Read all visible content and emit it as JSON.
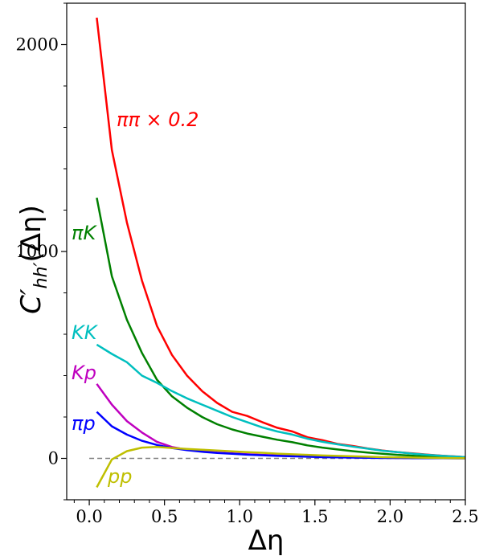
{
  "chart_data": {
    "type": "line",
    "xlabel": "Δη",
    "ylabel": "C′_hh′(Δη)",
    "xlim": [
      -0.15,
      2.5
    ],
    "ylim": [
      -200,
      2200
    ],
    "xticks": [
      "0.0",
      "0.5",
      "1.0",
      "1.5",
      "2.0",
      "2.5"
    ],
    "yticks": [
      "0",
      "1000",
      "2000"
    ],
    "x_tick_values": [
      0.0,
      0.5,
      1.0,
      1.5,
      2.0,
      2.5
    ],
    "y_tick_values": [
      0,
      1000,
      2000
    ],
    "x_minor_step": 0.1,
    "y_minor_step": 200,
    "grid": false,
    "zero_reference_line": true,
    "series": [
      {
        "name": "ππ × 0.2",
        "color": "#ff0000",
        "x": [
          0.05,
          0.15,
          0.25,
          0.35,
          0.45,
          0.55,
          0.65,
          0.75,
          0.85,
          0.95,
          1.05,
          1.15,
          1.25,
          1.35,
          1.45,
          1.55,
          1.65,
          1.75,
          1.85,
          1.95,
          2.05,
          2.15,
          2.25,
          2.35,
          2.45,
          2.5
        ],
        "values": [
          2130,
          1490,
          1140,
          860,
          640,
          500,
          400,
          325,
          268,
          225,
          205,
          175,
          148,
          130,
          102,
          88,
          70,
          60,
          48,
          38,
          30,
          24,
          18,
          13,
          9,
          6
        ]
      },
      {
        "name": "πK",
        "color": "#008000",
        "x": [
          0.05,
          0.15,
          0.25,
          0.35,
          0.45,
          0.55,
          0.65,
          0.75,
          0.85,
          0.95,
          1.05,
          1.15,
          1.25,
          1.35,
          1.45,
          1.55,
          1.65,
          1.75,
          1.85,
          1.95,
          2.05,
          2.15,
          2.25,
          2.35,
          2.45,
          2.5
        ],
        "values": [
          1260,
          880,
          670,
          510,
          380,
          300,
          245,
          200,
          165,
          140,
          120,
          105,
          90,
          78,
          63,
          52,
          43,
          35,
          28,
          22,
          17,
          13,
          9,
          6,
          4,
          3
        ]
      },
      {
        "name": "KK",
        "color": "#00bfbf",
        "x": [
          0.05,
          0.15,
          0.25,
          0.35,
          0.45,
          0.55,
          0.65,
          0.75,
          0.85,
          0.95,
          1.05,
          1.15,
          1.25,
          1.35,
          1.45,
          1.55,
          1.65,
          1.75,
          1.85,
          1.95,
          2.05,
          2.15,
          2.25,
          2.35,
          2.45,
          2.5
        ],
        "values": [
          550,
          505,
          465,
          400,
          365,
          325,
          290,
          260,
          230,
          200,
          175,
          150,
          130,
          115,
          95,
          80,
          68,
          57,
          47,
          37,
          30,
          23,
          17,
          12,
          8,
          6
        ]
      },
      {
        "name": "Kp",
        "color": "#bf00bf",
        "x": [
          0.05,
          0.15,
          0.25,
          0.35,
          0.45,
          0.55,
          0.65,
          0.75,
          0.85,
          0.95,
          1.05,
          1.15,
          1.25,
          1.35,
          1.45,
          1.55,
          1.65,
          1.75,
          1.85,
          1.95,
          2.05,
          2.15,
          2.25,
          2.35,
          2.45,
          2.5
        ],
        "values": [
          360,
          260,
          180,
          125,
          80,
          55,
          42,
          34,
          28,
          24,
          20,
          17,
          14,
          12,
          10,
          8,
          6,
          5,
          4,
          3,
          2,
          2,
          1,
          1,
          1,
          1
        ]
      },
      {
        "name": "πp",
        "color": "#0000ff",
        "x": [
          0.05,
          0.15,
          0.25,
          0.35,
          0.45,
          0.55,
          0.65,
          0.75,
          0.85,
          0.95,
          1.05,
          1.15,
          1.25,
          1.35,
          1.45,
          1.55,
          1.65,
          1.75,
          1.85,
          1.95,
          2.05,
          2.15,
          2.25,
          2.35,
          2.45,
          2.5
        ],
        "values": [
          225,
          155,
          115,
          85,
          65,
          50,
          40,
          32,
          26,
          22,
          18,
          15,
          12,
          10,
          8,
          6,
          5,
          4,
          3,
          2,
          2,
          1,
          1,
          1,
          0,
          0
        ]
      },
      {
        "name": "pp",
        "color": "#bfbf00",
        "x": [
          0.05,
          0.15,
          0.25,
          0.35,
          0.45,
          0.55,
          0.65,
          0.75,
          0.85,
          0.95,
          1.05,
          1.15,
          1.25,
          1.35,
          1.45,
          1.55,
          1.65,
          1.75,
          1.85,
          1.95,
          2.05,
          2.15,
          2.25,
          2.35,
          2.45,
          2.5
        ],
        "values": [
          -140,
          -5,
          35,
          52,
          55,
          50,
          46,
          42,
          38,
          34,
          30,
          27,
          23,
          20,
          17,
          14,
          12,
          10,
          8,
          6,
          5,
          4,
          3,
          2,
          1,
          1
        ]
      }
    ]
  }
}
